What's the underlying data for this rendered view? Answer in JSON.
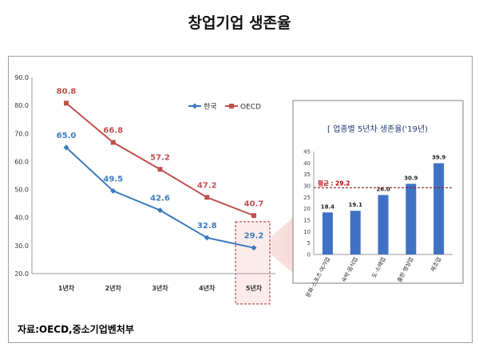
{
  "page": {
    "title": "창업기업 생존율",
    "source": "자료:OECD,중소기업벤처부"
  },
  "colors": {
    "korea": "#3a7bbf",
    "oecd": "#c0504d",
    "bar": "#3f72c4",
    "avg_line": "#9b1c1c",
    "inset_title": "#1f3b76",
    "highlight": "#c0504d"
  },
  "chart_data": [
    {
      "type": "line",
      "title": "",
      "xlabel": "",
      "ylabel": "",
      "categories": [
        "1년차",
        "2년차",
        "3년차",
        "4년차",
        "5년차"
      ],
      "ylim": [
        20.0,
        90.0
      ],
      "yticks": [
        "20.0",
        "30.0",
        "40.0",
        "50.0",
        "60.0",
        "70.0",
        "80.0",
        "90.0"
      ],
      "legend_position": "top-right",
      "grid": false,
      "series": [
        {
          "name": "한국",
          "values": [
            65.0,
            49.5,
            42.6,
            32.8,
            29.2
          ],
          "labels": [
            "65.0",
            "49.5",
            "42.6",
            "32.8",
            "29.2"
          ]
        },
        {
          "name": "OECD",
          "values": [
            80.8,
            66.8,
            57.2,
            47.2,
            40.7
          ],
          "labels": [
            "80.8",
            "66.8",
            "57.2",
            "47.2",
            "40.7"
          ]
        }
      ],
      "highlighted_category": "5년차"
    },
    {
      "type": "bar",
      "title": "[ 업종별 5년차 생존율('19년)",
      "categories": [
        "문화·스포츠·여가업",
        "숙박·음식업",
        "도·소매업",
        "출판·영상업",
        "제조업"
      ],
      "values": [
        18.4,
        19.1,
        26.0,
        30.9,
        39.9
      ],
      "labels": [
        "18.4",
        "19.1",
        "26.0",
        "30.9",
        "39.9"
      ],
      "ylim": [
        0,
        45
      ],
      "yticks": [
        "0",
        "5",
        "10",
        "15",
        "20",
        "25",
        "30",
        "35",
        "40",
        "45"
      ],
      "reference_line": {
        "label": "평균 : 29.2",
        "value": 29.2
      },
      "grid": false
    }
  ]
}
